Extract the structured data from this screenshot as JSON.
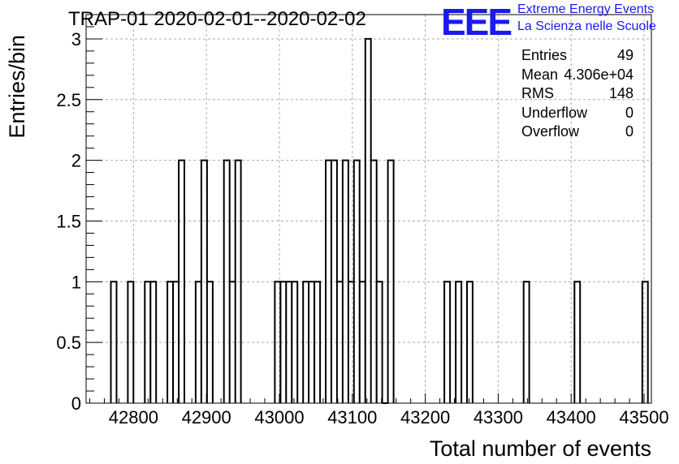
{
  "header": {
    "title": "TRAP-01 2020-02-01--2020-02-02",
    "logo_text": "EEE",
    "logo_line1": "Extreme Energy Events",
    "logo_line2": "La Scienza nelle Scuole"
  },
  "stats": [
    {
      "label": "Entries",
      "value": "49"
    },
    {
      "label": "Mean",
      "value": "4.306e+04"
    },
    {
      "label": "RMS",
      "value": "148"
    },
    {
      "label": "Underflow",
      "value": "0"
    },
    {
      "label": "Overflow",
      "value": "0"
    }
  ],
  "colors": {
    "line": "#000000",
    "grid": "#aaaaaa",
    "logo": "#1a1aee"
  },
  "chart_data": {
    "type": "histogram",
    "title": "TRAP-01 2020-02-01--2020-02-02",
    "xlabel": "Total number of events",
    "ylabel": "Entries/bin",
    "xlim": [
      42735,
      43510
    ],
    "ylim": [
      0,
      3.2
    ],
    "grid": true,
    "bin_width": 7.75,
    "bins": [
      {
        "x": 42769.0,
        "count": 1
      },
      {
        "x": 42792.2,
        "count": 1
      },
      {
        "x": 42815.5,
        "count": 1
      },
      {
        "x": 42823.2,
        "count": 1
      },
      {
        "x": 42846.5,
        "count": 1
      },
      {
        "x": 42854.2,
        "count": 1
      },
      {
        "x": 42862.0,
        "count": 2
      },
      {
        "x": 42885.2,
        "count": 1
      },
      {
        "x": 42893.0,
        "count": 2
      },
      {
        "x": 42900.8,
        "count": 1
      },
      {
        "x": 42924.0,
        "count": 2
      },
      {
        "x": 42931.8,
        "count": 1
      },
      {
        "x": 42939.5,
        "count": 2
      },
      {
        "x": 42993.8,
        "count": 1
      },
      {
        "x": 43001.5,
        "count": 1
      },
      {
        "x": 43009.2,
        "count": 1
      },
      {
        "x": 43017.0,
        "count": 1
      },
      {
        "x": 43032.5,
        "count": 1
      },
      {
        "x": 43040.2,
        "count": 1
      },
      {
        "x": 43048.0,
        "count": 1
      },
      {
        "x": 43063.5,
        "count": 2
      },
      {
        "x": 43071.2,
        "count": 2
      },
      {
        "x": 43079.0,
        "count": 1
      },
      {
        "x": 43086.8,
        "count": 2
      },
      {
        "x": 43094.5,
        "count": 1
      },
      {
        "x": 43102.2,
        "count": 2
      },
      {
        "x": 43110.0,
        "count": 1
      },
      {
        "x": 43117.8,
        "count": 3
      },
      {
        "x": 43125.5,
        "count": 2
      },
      {
        "x": 43133.2,
        "count": 1
      },
      {
        "x": 43141.0,
        "count": 0
      },
      {
        "x": 43148.8,
        "count": 2
      },
      {
        "x": 43226.2,
        "count": 1
      },
      {
        "x": 43241.8,
        "count": 1
      },
      {
        "x": 43257.2,
        "count": 1
      },
      {
        "x": 43334.8,
        "count": 1
      },
      {
        "x": 43404.5,
        "count": 1
      },
      {
        "x": 43497.5,
        "count": 1
      }
    ],
    "x_ticks": [
      42800,
      42900,
      43000,
      43100,
      43200,
      43300,
      43400,
      43500
    ],
    "y_ticks": [
      "0",
      "0.5",
      "1",
      "1.5",
      "2",
      "2.5",
      "3"
    ]
  }
}
